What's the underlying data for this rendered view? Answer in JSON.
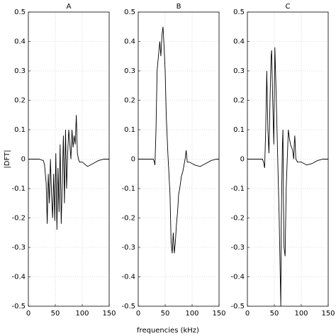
{
  "chart_data": [
    {
      "type": "line",
      "title": "A",
      "ylabel": "|DFT|",
      "xlim": [
        0,
        150
      ],
      "ylim": [
        -0.5,
        0.5
      ],
      "xticks": [
        0,
        50,
        100,
        150
      ],
      "yticks": [
        -0.5,
        -0.4,
        -0.3,
        -0.2,
        -0.1,
        0,
        0.1,
        0.2,
        0.3,
        0.4,
        0.5
      ],
      "grid": true,
      "x": [
        0,
        20,
        28,
        30,
        33,
        35,
        37,
        39,
        41,
        43,
        45,
        47,
        49,
        51,
        53,
        55,
        57,
        59,
        61,
        63,
        65,
        67,
        69,
        71,
        73,
        75,
        77,
        79,
        81,
        83,
        85,
        87,
        89,
        91,
        93,
        95,
        100,
        110,
        120,
        130,
        140,
        150
      ],
      "series": [
        {
          "color": "#000000",
          "values": [
            0,
            0,
            -0.005,
            -0.02,
            -0.08,
            -0.22,
            -0.05,
            -0.15,
            0.0,
            -0.12,
            -0.2,
            -0.05,
            -0.21,
            0.02,
            -0.24,
            -0.03,
            -0.18,
            0.05,
            -0.22,
            -0.08,
            0.08,
            -0.15,
            0.1,
            -0.1,
            0.02,
            0.1,
            0.05,
            0.0,
            0.1,
            0.04,
            0.08,
            0.05,
            0.15,
            0.02,
            0.0,
            -0.01,
            -0.01,
            -0.025,
            -0.015,
            -0.005,
            0,
            0
          ]
        }
      ]
    },
    {
      "type": "line",
      "title": "B",
      "xlabel": "frequencies (kHz)",
      "xlim": [
        0,
        150
      ],
      "ylim": [
        -0.5,
        0.5
      ],
      "xticks": [
        0,
        50,
        100,
        150
      ],
      "yticks": [
        -0.5,
        -0.4,
        -0.3,
        -0.2,
        -0.1,
        0,
        0.1,
        0.2,
        0.3,
        0.4,
        0.5
      ],
      "grid": true,
      "x": [
        0,
        28,
        30,
        31,
        33,
        35,
        38,
        40,
        42,
        44,
        46,
        48,
        50,
        52,
        55,
        57,
        59,
        61,
        63,
        65,
        67,
        69,
        71,
        73,
        75,
        77,
        80,
        83,
        85,
        87,
        89,
        91,
        95,
        105,
        115,
        125,
        135,
        145,
        150
      ],
      "series": [
        {
          "color": "#000000",
          "values": [
            0,
            0,
            -0.01,
            -0.02,
            0.1,
            0.3,
            0.36,
            0.4,
            0.35,
            0.42,
            0.45,
            0.38,
            0.3,
            0.15,
            0.02,
            -0.05,
            -0.12,
            -0.28,
            -0.32,
            -0.25,
            -0.32,
            -0.28,
            -0.22,
            -0.18,
            -0.12,
            -0.1,
            -0.06,
            -0.04,
            -0.02,
            0.0,
            0.03,
            -0.01,
            -0.01,
            -0.02,
            -0.025,
            -0.015,
            -0.005,
            0,
            0
          ]
        }
      ]
    },
    {
      "type": "line",
      "title": "C",
      "xlim": [
        0,
        150
      ],
      "ylim": [
        -0.5,
        0.5
      ],
      "xticks": [
        0,
        50,
        100,
        150
      ],
      "yticks": [
        -0.5,
        -0.4,
        -0.3,
        -0.2,
        -0.1,
        0,
        0.1,
        0.2,
        0.3,
        0.4,
        0.5
      ],
      "grid": true,
      "x": [
        0,
        28,
        30,
        32,
        34,
        36,
        38,
        40,
        42,
        44,
        45,
        47,
        49,
        51,
        53,
        55,
        57,
        59,
        61,
        62,
        63,
        65,
        66,
        67,
        68,
        70,
        72,
        74,
        76,
        78,
        80,
        82,
        84,
        86,
        87,
        88,
        90,
        93,
        100,
        110,
        120,
        130,
        140,
        150
      ],
      "series": [
        {
          "color": "#000000",
          "values": [
            0,
            0,
            -0.01,
            -0.03,
            0.1,
            0.3,
            0.1,
            0.02,
            0.2,
            0.35,
            0.37,
            0.2,
            0.05,
            0.38,
            0.25,
            0.1,
            -0.05,
            -0.2,
            -0.4,
            -0.5,
            -0.2,
            0.05,
            0.1,
            -0.15,
            -0.3,
            -0.33,
            -0.1,
            0.0,
            0.1,
            0.07,
            0.05,
            0.04,
            0.03,
            0.0,
            0.05,
            0.08,
            0.0,
            -0.01,
            -0.01,
            -0.02,
            -0.015,
            -0.005,
            0,
            0
          ]
        }
      ]
    }
  ]
}
